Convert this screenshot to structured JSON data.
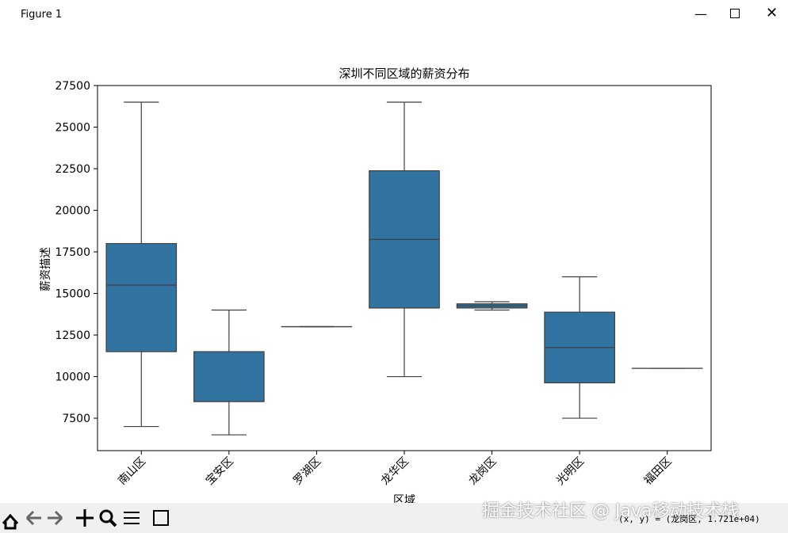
{
  "window": {
    "title": "Figure 1",
    "status": "(x, y) = (龙岗区, 1.721e+04)",
    "watermark": "掘金技术社区 @ Java移动技术栈"
  },
  "chart_data": {
    "type": "box",
    "title": "深圳不同区域的薪资分布",
    "xlabel": "区域",
    "ylabel": "薪资描述",
    "categories": [
      "南山区",
      "宝安区",
      "罗湖区",
      "龙华区",
      "龙岗区",
      "光明区",
      "福田区"
    ],
    "boxes": [
      {
        "whislo": 7000,
        "q1": 11500,
        "med": 15500,
        "q3": 18000,
        "whishi": 26500
      },
      {
        "whislo": 6500,
        "q1": 8500,
        "med": 8500,
        "q3": 11500,
        "whishi": 14000
      },
      {
        "whislo": 13000,
        "q1": 13000,
        "med": 13000,
        "q3": 13000,
        "whishi": 13000
      },
      {
        "whislo": 10000,
        "q1": 14125,
        "med": 18250,
        "q3": 22375,
        "whishi": 26500
      },
      {
        "whislo": 14000,
        "q1": 14125,
        "med": 14250,
        "q3": 14375,
        "whishi": 14500
      },
      {
        "whislo": 7500,
        "q1": 9625,
        "med": 11750,
        "q3": 13875,
        "whishi": 16000
      },
      {
        "whislo": 10500,
        "q1": 10500,
        "med": 10500,
        "q3": 10500,
        "whishi": 10500
      }
    ],
    "color": "#3274a1",
    "ylim": [
      5550,
      27500
    ],
    "yticks": [
      7500,
      10000,
      12500,
      15000,
      17500,
      20000,
      22500,
      25000,
      27500
    ]
  }
}
